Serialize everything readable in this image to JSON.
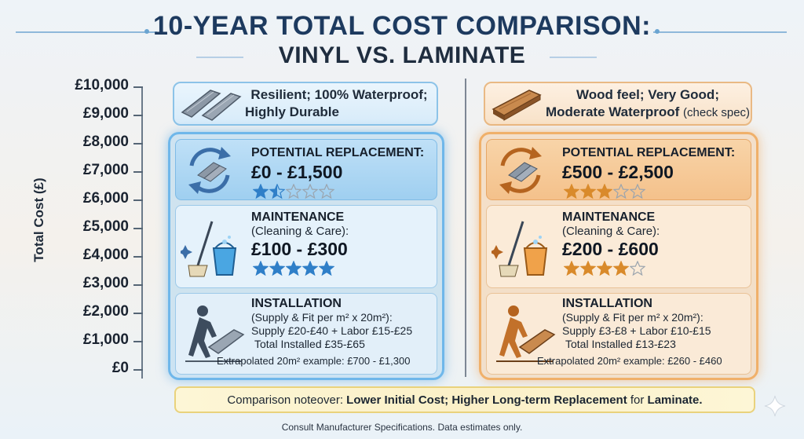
{
  "chart_data": {
    "type": "table",
    "title_line1": "10-YEAR TOTAL COST COMPARISON:",
    "title_line2": "VINYL VS. LAMINATE",
    "ylabel": "Total Cost (£)",
    "yticks": [
      "£10,000",
      "£9,000",
      "£8,000",
      "£7,000",
      "£6,000",
      "£5,000",
      "£4,000",
      "£3,000",
      "£2,000",
      "£1,000",
      "£0"
    ],
    "ylim": [
      0,
      10000
    ],
    "columns": [
      {
        "info_line1": "Resilient; 100% Waterproof;",
        "info_line2": "Highly Durable",
        "replacement": {
          "label": "POTENTIAL REPLACEMENT:",
          "range": "£0 - £1,500",
          "stars": 1.5
        },
        "maintenance": {
          "label": "MAINTENANCE",
          "sub": "(Cleaning & Care):",
          "range": "£100 - £300",
          "stars": 5
        },
        "installation": {
          "label": "INSTALLATION",
          "sub": "(Supply & Fit per m² x 20m²):",
          "supply": "Supply £20-£40 + Labor £15-£25",
          "total": "Total Installed £35-£65",
          "example": "Extrapolated 20m² example: £700 - £1,300"
        }
      },
      {
        "info_line1": "Wood feel; Very Good;",
        "info_line2": "Moderate Waterproof",
        "info_line2_suffix": "(check spec)",
        "replacement": {
          "label": "POTENTIAL REPLACEMENT:",
          "range": "£500 - £2,500",
          "stars": 3
        },
        "maintenance": {
          "label": "MAINTENANCE",
          "sub": "(Cleaning & Care):",
          "range": "£200 - £600",
          "stars": 4
        },
        "installation": {
          "label": "INSTALLATION",
          "sub": "(Supply & Fit per m² x 20m²):",
          "supply": "Supply £3-£8 + Labor £10-£15",
          "total": "Total Installed £13-£23",
          "example": "Extrapolated 20m² example: £260 - £460"
        }
      }
    ],
    "note_prefix": "Comparison noteover: ",
    "note_bold": "Lower Initial Cost; Higher Long-term Replacement",
    "note_mid": " for ",
    "note_bold2": "Laminate.",
    "footer": "Consult Manufacturer Specifications. Data estimates only.",
    "colors": {
      "vinyl": "#6fb7ea",
      "laminate": "#f0b06a",
      "star_vinyl": "#2f7fc8",
      "star_lam": "#d98a2b"
    }
  }
}
